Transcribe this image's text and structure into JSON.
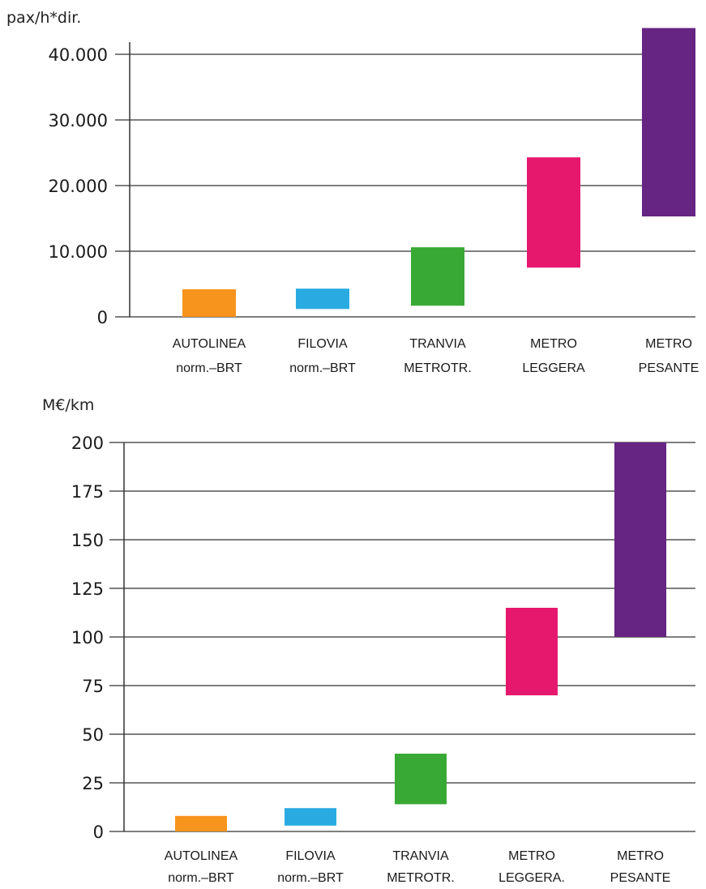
{
  "chart_data": [
    {
      "type": "bar",
      "subtype": "floating-range",
      "ylabel": "pax/h*dir.",
      "yticks": [
        "0",
        "10.000",
        "20.000",
        "30.000",
        "40.000"
      ],
      "ytick_values": [
        0,
        10000,
        20000,
        30000,
        40000
      ],
      "ylim": [
        0,
        44000
      ],
      "grid": true,
      "categories": [
        {
          "line1": "AUTOLINEA",
          "line2": "norm.–BRT",
          "low": 0,
          "high": 4200,
          "color": "#f7941d"
        },
        {
          "line1": "FILOVIA",
          "line2": "norm.–BRT",
          "low": 1200,
          "high": 4300,
          "color": "#29abe2"
        },
        {
          "line1": "TRANVIA",
          "line2": "METROTR.",
          "low": 1700,
          "high": 10600,
          "color": "#39a935"
        },
        {
          "line1": "METRO",
          "line2": "LEGGERA",
          "low": 7500,
          "high": 24300,
          "color": "#e6186e"
        },
        {
          "line1": "METRO",
          "line2": "PESANTE",
          "low": 15300,
          "high": 44000,
          "color": "#662483"
        }
      ]
    },
    {
      "type": "bar",
      "subtype": "floating-range",
      "ylabel": "M€/km",
      "yticks": [
        "0",
        "25",
        "50",
        "75",
        "100",
        "125",
        "150",
        "175",
        "200"
      ],
      "ytick_values": [
        0,
        25,
        50,
        75,
        100,
        125,
        150,
        175,
        200
      ],
      "ylim": [
        0,
        200
      ],
      "grid": true,
      "categories": [
        {
          "line1": "AUTOLINEA",
          "line2": "norm.–BRT",
          "low": 0,
          "high": 8,
          "color": "#f7941d"
        },
        {
          "line1": "FILOVIA",
          "line2": "norm.–BRT",
          "low": 3,
          "high": 12,
          "color": "#29abe2"
        },
        {
          "line1": "TRANVIA",
          "line2": "METROTR.",
          "low": 14,
          "high": 40,
          "color": "#39a935"
        },
        {
          "line1": "METRO",
          "line2": "LEGGERA.",
          "low": 70,
          "high": 115,
          "color": "#e6186e"
        },
        {
          "line1": "METRO",
          "line2": "PESANTE",
          "low": 100,
          "high": 200,
          "color": "#662483"
        }
      ]
    }
  ]
}
